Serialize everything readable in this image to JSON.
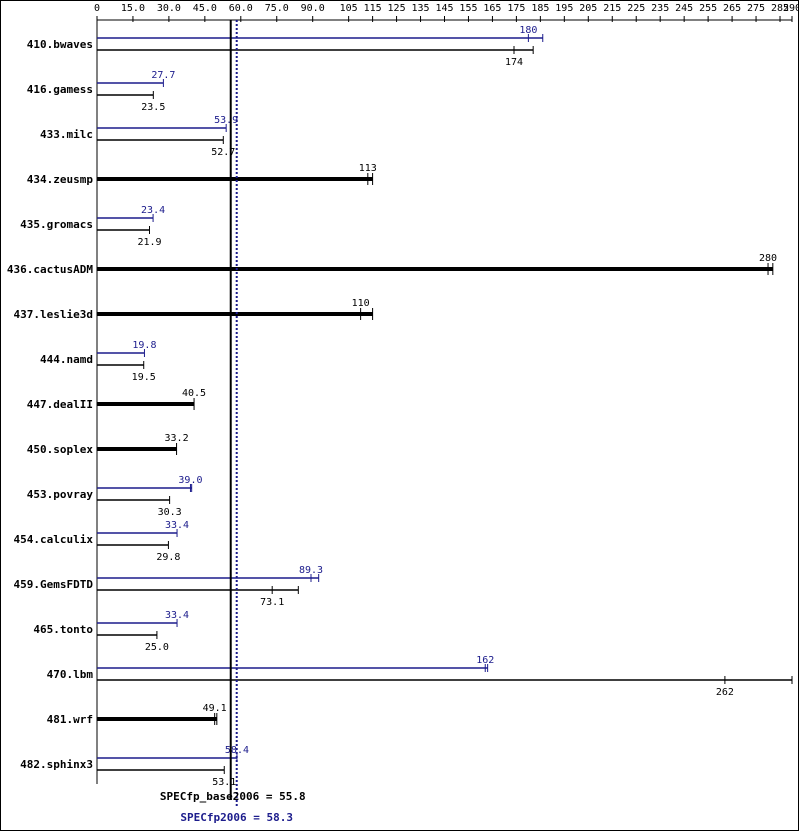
{
  "colors": {
    "base": "#000000",
    "peak": "#1c1c8c",
    "frame": "#000000"
  },
  "chart_data": {
    "type": "bar",
    "orientation": "horizontal",
    "xlim": [
      0,
      290
    ],
    "ticks": [
      {
        "v": 0,
        "label": "0"
      },
      {
        "v": 15,
        "label": "15.0"
      },
      {
        "v": 30,
        "label": "30.0"
      },
      {
        "v": 45,
        "label": "45.0"
      },
      {
        "v": 60,
        "label": "60.0"
      },
      {
        "v": 75,
        "label": "75.0"
      },
      {
        "v": 90,
        "label": "90.0"
      },
      {
        "v": 105,
        "label": "105"
      },
      {
        "v": 115,
        "label": "115"
      },
      {
        "v": 125,
        "label": "125"
      },
      {
        "v": 135,
        "label": "135"
      },
      {
        "v": 145,
        "label": "145"
      },
      {
        "v": 155,
        "label": "155"
      },
      {
        "v": 165,
        "label": "165"
      },
      {
        "v": 175,
        "label": "175"
      },
      {
        "v": 185,
        "label": "185"
      },
      {
        "v": 195,
        "label": "195"
      },
      {
        "v": 205,
        "label": "205"
      },
      {
        "v": 215,
        "label": "215"
      },
      {
        "v": 225,
        "label": "225"
      },
      {
        "v": 235,
        "label": "235"
      },
      {
        "v": 245,
        "label": "245"
      },
      {
        "v": 255,
        "label": "255"
      },
      {
        "v": 265,
        "label": "265"
      },
      {
        "v": 275,
        "label": "275"
      },
      {
        "v": 285,
        "label": "285"
      },
      {
        "v": 290,
        "label": "290"
      }
    ],
    "benchmarks": [
      {
        "name": "410.bwaves",
        "base": 174,
        "base_label": "174",
        "peak": 180,
        "peak_label": "180",
        "base_max": 182,
        "peak_max": 186
      },
      {
        "name": "416.gamess",
        "base": 23.5,
        "base_label": "23.5",
        "peak": 27.7,
        "peak_label": "27.7"
      },
      {
        "name": "433.milc",
        "base": 52.7,
        "base_label": "52.7",
        "peak": 53.9,
        "peak_label": "53.9"
      },
      {
        "name": "434.zeusmp",
        "base": 113,
        "base_label": "113",
        "same": true,
        "base_max": 115
      },
      {
        "name": "435.gromacs",
        "base": 21.9,
        "base_label": "21.9",
        "peak": 23.4,
        "peak_label": "23.4"
      },
      {
        "name": "436.cactusADM",
        "base": 280,
        "base_label": "280",
        "same": true,
        "base_max": 282
      },
      {
        "name": "437.leslie3d",
        "base": 110,
        "base_label": "110",
        "same": true,
        "base_max": 115
      },
      {
        "name": "444.namd",
        "base": 19.5,
        "base_label": "19.5",
        "peak": 19.8,
        "peak_label": "19.8"
      },
      {
        "name": "447.dealII",
        "base": 40.5,
        "base_label": "40.5",
        "same": true
      },
      {
        "name": "450.soplex",
        "base": 33.2,
        "base_label": "33.2",
        "same": true
      },
      {
        "name": "453.povray",
        "base": 30.3,
        "base_label": "30.3",
        "peak": 39.0,
        "peak_label": "39.0",
        "peak_max": 39.5
      },
      {
        "name": "454.calculix",
        "base": 29.8,
        "base_label": "29.8",
        "peak": 33.4,
        "peak_label": "33.4"
      },
      {
        "name": "459.GemsFDTD",
        "base": 73.1,
        "base_label": "73.1",
        "peak": 89.3,
        "peak_label": "89.3",
        "base_max": 84,
        "peak_max": 92.5
      },
      {
        "name": "465.tonto",
        "base": 25.0,
        "base_label": "25.0",
        "peak": 33.4,
        "peak_label": "33.4"
      },
      {
        "name": "470.lbm",
        "base": 262,
        "base_label": "262",
        "peak": 162,
        "peak_label": "162",
        "base_max": 290,
        "peak_max": 163
      },
      {
        "name": "481.wrf",
        "base": 49.1,
        "base_label": "49.1",
        "same": true,
        "base_max": 50
      },
      {
        "name": "482.sphinx3",
        "base": 53.1,
        "base_label": "53.1",
        "peak": 58.4,
        "peak_label": "58.4"
      }
    ],
    "summary": {
      "base_label": "SPECfp_base2006 = 55.8",
      "base_value": 55.8,
      "peak_label": "SPECfp2006 = 58.3",
      "peak_value": 58.3
    }
  }
}
